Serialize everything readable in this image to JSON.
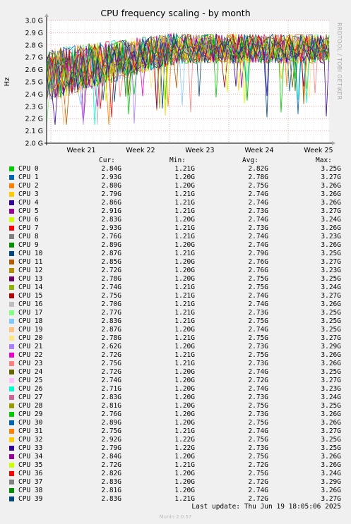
{
  "chart_data": {
    "type": "line",
    "title": "CPU frequency scaling - by month",
    "ylabel": "Hz",
    "y_ticks": [
      "2.0 G",
      "2.1 G",
      "2.2 G",
      "2.3 G",
      "2.4 G",
      "2.5 G",
      "2.6 G",
      "2.7 G",
      "2.8 G",
      "2.9 G",
      "3.0 G"
    ],
    "ylim": [
      2.0,
      3.0
    ],
    "x_ticks": [
      "Week 21",
      "Week 22",
      "Week 23",
      "Week 24",
      "Week 25"
    ],
    "grid": true,
    "series_count": 40
  },
  "side_label": "RRDTOOL / TOBI OETIKER",
  "legend": {
    "headers": {
      "cur": "Cur:",
      "min": "Min:",
      "avg": "Avg:",
      "max": "Max:"
    },
    "rows": [
      {
        "name": "CPU 0",
        "color": "#00cc00",
        "cur": "2.84G",
        "min": "1.21G",
        "avg": "2.82G",
        "max": "3.25G"
      },
      {
        "name": "CPU 1",
        "color": "#0066b3",
        "cur": "2.93G",
        "min": "1.20G",
        "avg": "2.78G",
        "max": "3.27G"
      },
      {
        "name": "CPU 2",
        "color": "#ff8000",
        "cur": "2.80G",
        "min": "1.20G",
        "avg": "2.75G",
        "max": "3.26G"
      },
      {
        "name": "CPU 3",
        "color": "#ffcc00",
        "cur": "2.79G",
        "min": "1.21G",
        "avg": "2.74G",
        "max": "3.26G"
      },
      {
        "name": "CPU 4",
        "color": "#330099",
        "cur": "2.86G",
        "min": "1.21G",
        "avg": "2.74G",
        "max": "3.26G"
      },
      {
        "name": "CPU 5",
        "color": "#990099",
        "cur": "2.91G",
        "min": "1.21G",
        "avg": "2.73G",
        "max": "3.27G"
      },
      {
        "name": "CPU 6",
        "color": "#ccff00",
        "cur": "2.83G",
        "min": "1.20G",
        "avg": "2.74G",
        "max": "3.24G"
      },
      {
        "name": "CPU 7",
        "color": "#ff0000",
        "cur": "2.93G",
        "min": "1.21G",
        "avg": "2.73G",
        "max": "3.26G"
      },
      {
        "name": "CPU 8",
        "color": "#808080",
        "cur": "2.76G",
        "min": "1.21G",
        "avg": "2.74G",
        "max": "3.23G"
      },
      {
        "name": "CPU 9",
        "color": "#008f00",
        "cur": "2.89G",
        "min": "1.20G",
        "avg": "2.74G",
        "max": "3.26G"
      },
      {
        "name": "CPU 10",
        "color": "#00487d",
        "cur": "2.87G",
        "min": "1.21G",
        "avg": "2.79G",
        "max": "3.25G"
      },
      {
        "name": "CPU 11",
        "color": "#b35a00",
        "cur": "2.85G",
        "min": "1.20G",
        "avg": "2.76G",
        "max": "3.27G"
      },
      {
        "name": "CPU 12",
        "color": "#b38f00",
        "cur": "2.72G",
        "min": "1.20G",
        "avg": "2.76G",
        "max": "3.23G"
      },
      {
        "name": "CPU 13",
        "color": "#6b006b",
        "cur": "2.78G",
        "min": "1.20G",
        "avg": "2.75G",
        "max": "3.25G"
      },
      {
        "name": "CPU 14",
        "color": "#8fb300",
        "cur": "2.74G",
        "min": "1.21G",
        "avg": "2.75G",
        "max": "3.24G"
      },
      {
        "name": "CPU 15",
        "color": "#b30000",
        "cur": "2.75G",
        "min": "1.21G",
        "avg": "2.74G",
        "max": "3.27G"
      },
      {
        "name": "CPU 16",
        "color": "#bebebe",
        "cur": "2.70G",
        "min": "1.21G",
        "avg": "2.74G",
        "max": "3.26G"
      },
      {
        "name": "CPU 17",
        "color": "#80ff80",
        "cur": "2.77G",
        "min": "1.21G",
        "avg": "2.73G",
        "max": "3.25G"
      },
      {
        "name": "CPU 18",
        "color": "#80c9ff",
        "cur": "2.83G",
        "min": "1.21G",
        "avg": "2.75G",
        "max": "3.25G"
      },
      {
        "name": "CPU 19",
        "color": "#ffc080",
        "cur": "2.87G",
        "min": "1.20G",
        "avg": "2.74G",
        "max": "3.25G"
      },
      {
        "name": "CPU 20",
        "color": "#ffe680",
        "cur": "2.78G",
        "min": "1.21G",
        "avg": "2.75G",
        "max": "3.27G"
      },
      {
        "name": "CPU 21",
        "color": "#aa80ff",
        "cur": "2.62G",
        "min": "1.20G",
        "avg": "2.73G",
        "max": "3.29G"
      },
      {
        "name": "CPU 22",
        "color": "#ee00cc",
        "cur": "2.72G",
        "min": "1.21G",
        "avg": "2.75G",
        "max": "3.26G"
      },
      {
        "name": "CPU 23",
        "color": "#ff8080",
        "cur": "2.75G",
        "min": "1.21G",
        "avg": "2.73G",
        "max": "3.26G"
      },
      {
        "name": "CPU 24",
        "color": "#666600",
        "cur": "2.72G",
        "min": "1.20G",
        "avg": "2.74G",
        "max": "3.25G"
      },
      {
        "name": "CPU 25",
        "color": "#ffbfff",
        "cur": "2.74G",
        "min": "1.20G",
        "avg": "2.72G",
        "max": "3.27G"
      },
      {
        "name": "CPU 26",
        "color": "#00ffcc",
        "cur": "2.71G",
        "min": "1.20G",
        "avg": "2.74G",
        "max": "3.23G"
      },
      {
        "name": "CPU 27",
        "color": "#cc6699",
        "cur": "2.83G",
        "min": "1.20G",
        "avg": "2.73G",
        "max": "3.24G"
      },
      {
        "name": "CPU 28",
        "color": "#999900",
        "cur": "2.81G",
        "min": "1.20G",
        "avg": "2.75G",
        "max": "3.25G"
      },
      {
        "name": "CPU 29",
        "color": "#00cc00",
        "cur": "2.76G",
        "min": "1.20G",
        "avg": "2.73G",
        "max": "3.26G"
      },
      {
        "name": "CPU 30",
        "color": "#0066b3",
        "cur": "2.89G",
        "min": "1.20G",
        "avg": "2.75G",
        "max": "3.26G"
      },
      {
        "name": "CPU 31",
        "color": "#ff8000",
        "cur": "2.75G",
        "min": "1.21G",
        "avg": "2.74G",
        "max": "3.27G"
      },
      {
        "name": "CPU 32",
        "color": "#ffcc00",
        "cur": "2.92G",
        "min": "1.22G",
        "avg": "2.75G",
        "max": "3.25G"
      },
      {
        "name": "CPU 33",
        "color": "#330099",
        "cur": "2.79G",
        "min": "1.22G",
        "avg": "2.73G",
        "max": "3.25G"
      },
      {
        "name": "CPU 34",
        "color": "#990099",
        "cur": "2.84G",
        "min": "1.20G",
        "avg": "2.75G",
        "max": "3.26G"
      },
      {
        "name": "CPU 35",
        "color": "#ccff00",
        "cur": "2.72G",
        "min": "1.21G",
        "avg": "2.72G",
        "max": "3.26G"
      },
      {
        "name": "CPU 36",
        "color": "#ff0000",
        "cur": "2.82G",
        "min": "1.20G",
        "avg": "2.75G",
        "max": "3.24G"
      },
      {
        "name": "CPU 37",
        "color": "#808080",
        "cur": "2.83G",
        "min": "1.20G",
        "avg": "2.72G",
        "max": "3.29G"
      },
      {
        "name": "CPU 38",
        "color": "#008f00",
        "cur": "2.81G",
        "min": "1.20G",
        "avg": "2.74G",
        "max": "3.26G"
      },
      {
        "name": "CPU 39",
        "color": "#00487d",
        "cur": "2.83G",
        "min": "1.21G",
        "avg": "2.72G",
        "max": "3.27G"
      }
    ]
  },
  "last_update": "Last update: Thu Jun 19 18:05:06 2025",
  "footer": "Munin 2.0.57"
}
